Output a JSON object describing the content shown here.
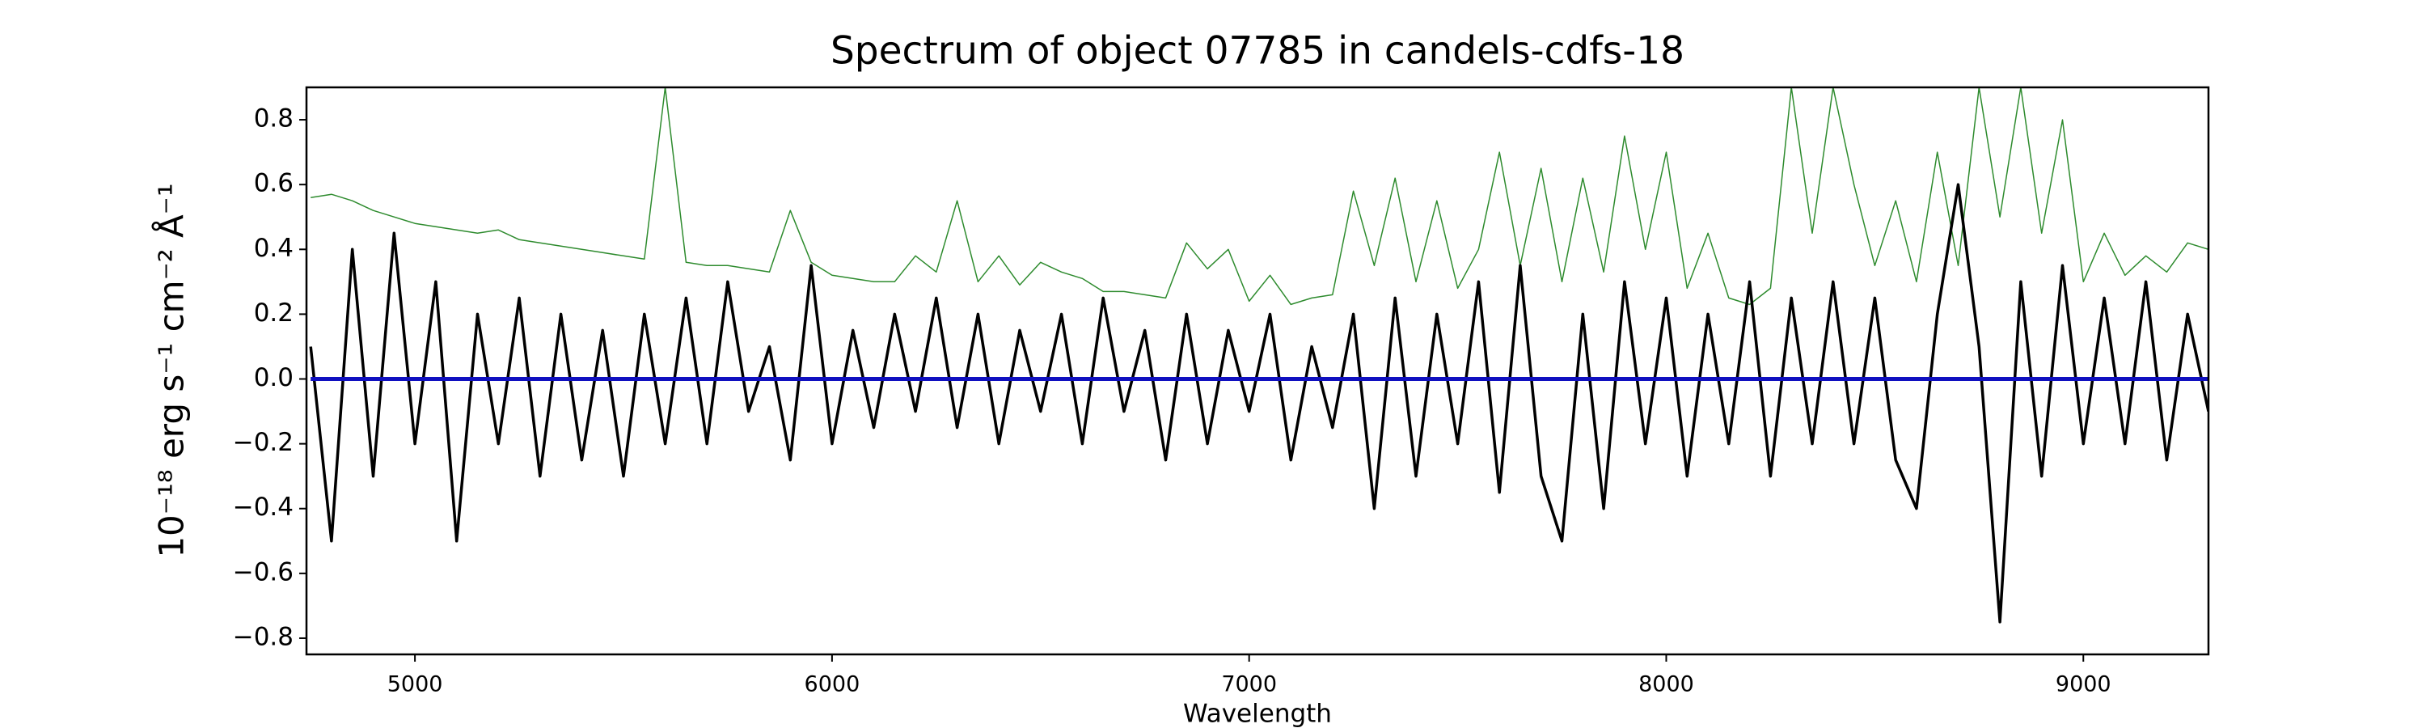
{
  "chart_data": {
    "type": "line",
    "title": "Spectrum of object 07785 in candels-cdfs-18",
    "x_label": "Wavelength",
    "y_label": "10⁻¹⁸ erg s⁻¹ cm⁻² Å⁻¹",
    "x": [
      4750,
      4800,
      4850,
      4900,
      4950,
      5000,
      5050,
      5100,
      5150,
      5200,
      5250,
      5300,
      5350,
      5400,
      5450,
      5500,
      5550,
      5600,
      5650,
      5700,
      5750,
      5800,
      5850,
      5900,
      5950,
      6000,
      6050,
      6100,
      6150,
      6200,
      6250,
      6300,
      6350,
      6400,
      6450,
      6500,
      6550,
      6600,
      6650,
      6700,
      6750,
      6800,
      6850,
      6900,
      6950,
      7000,
      7050,
      7100,
      7150,
      7200,
      7250,
      7300,
      7350,
      7400,
      7450,
      7500,
      7550,
      7600,
      7650,
      7700,
      7750,
      7800,
      7850,
      7900,
      7950,
      8000,
      8050,
      8100,
      8150,
      8200,
      8250,
      8300,
      8350,
      8400,
      8450,
      8500,
      8550,
      8600,
      8650,
      8700,
      8750,
      8800,
      8850,
      8900,
      8950,
      9000,
      9050,
      9100,
      9150,
      9200,
      9250,
      9300
    ],
    "series": [
      {
        "color": "#2e8b2e",
        "width": 1.5,
        "values": [
          0.56,
          0.57,
          0.55,
          0.52,
          0.5,
          0.48,
          0.47,
          0.46,
          0.45,
          0.46,
          0.43,
          0.42,
          0.41,
          0.4,
          0.39,
          0.38,
          0.37,
          0.9,
          0.36,
          0.35,
          0.35,
          0.34,
          0.33,
          0.52,
          0.36,
          0.32,
          0.31,
          0.3,
          0.3,
          0.38,
          0.33,
          0.55,
          0.3,
          0.38,
          0.29,
          0.36,
          0.33,
          0.31,
          0.27,
          0.27,
          0.26,
          0.25,
          0.42,
          0.34,
          0.4,
          0.24,
          0.32,
          0.23,
          0.25,
          0.26,
          0.58,
          0.35,
          0.62,
          0.3,
          0.55,
          0.28,
          0.4,
          0.7,
          0.35,
          0.65,
          0.3,
          0.62,
          0.33,
          0.75,
          0.4,
          0.7,
          0.28,
          0.45,
          0.25,
          0.23,
          0.28,
          0.9,
          0.45,
          0.9,
          0.6,
          0.35,
          0.55,
          0.3,
          0.7,
          0.35,
          0.9,
          0.5,
          0.9,
          0.45,
          0.8,
          0.3,
          0.45,
          0.32,
          0.38,
          0.33,
          0.42,
          0.4
        ]
      },
      {
        "color": "#000000",
        "width": 3.5,
        "values": [
          0.1,
          -0.5,
          0.4,
          -0.3,
          0.45,
          -0.2,
          0.3,
          -0.5,
          0.2,
          -0.2,
          0.25,
          -0.3,
          0.2,
          -0.25,
          0.15,
          -0.3,
          0.2,
          -0.2,
          0.25,
          -0.2,
          0.3,
          -0.1,
          0.1,
          -0.25,
          0.35,
          -0.2,
          0.15,
          -0.15,
          0.2,
          -0.1,
          0.25,
          -0.15,
          0.2,
          -0.2,
          0.15,
          -0.1,
          0.2,
          -0.2,
          0.25,
          -0.1,
          0.15,
          -0.25,
          0.2,
          -0.2,
          0.15,
          -0.1,
          0.2,
          -0.25,
          0.1,
          -0.15,
          0.2,
          -0.4,
          0.25,
          -0.3,
          0.2,
          -0.2,
          0.3,
          -0.35,
          0.35,
          -0.3,
          -0.5,
          0.2,
          -0.4,
          0.3,
          -0.2,
          0.25,
          -0.3,
          0.2,
          -0.2,
          0.3,
          -0.3,
          0.25,
          -0.2,
          0.3,
          -0.2,
          0.25,
          -0.25,
          -0.4,
          0.2,
          0.6,
          0.1,
          -0.75,
          0.3,
          -0.3,
          0.35,
          -0.2,
          0.25,
          -0.2,
          0.3,
          -0.25,
          0.2,
          -0.1
        ]
      },
      {
        "color": "#1010c0",
        "width": 5,
        "x": [
          4750,
          9300
        ],
        "values": [
          0,
          0
        ]
      }
    ],
    "xlim": [
      4740,
      9300
    ],
    "ylim": [
      -0.85,
      0.9
    ],
    "xticks": [
      5000,
      6000,
      7000,
      8000,
      9000
    ],
    "yticks": [
      {
        "value": -0.8,
        "label": "−0.8"
      },
      {
        "value": -0.6,
        "label": "−0.6"
      },
      {
        "value": -0.4,
        "label": "−0.4"
      },
      {
        "value": -0.2,
        "label": "−0.2"
      },
      {
        "value": 0,
        "label": "0.0"
      },
      {
        "value": 0.2,
        "label": "0.2"
      },
      {
        "value": 0.4,
        "label": "0.4"
      },
      {
        "value": 0.6,
        "label": "0.6"
      },
      {
        "value": 0.8,
        "label": "0.8"
      }
    ]
  }
}
